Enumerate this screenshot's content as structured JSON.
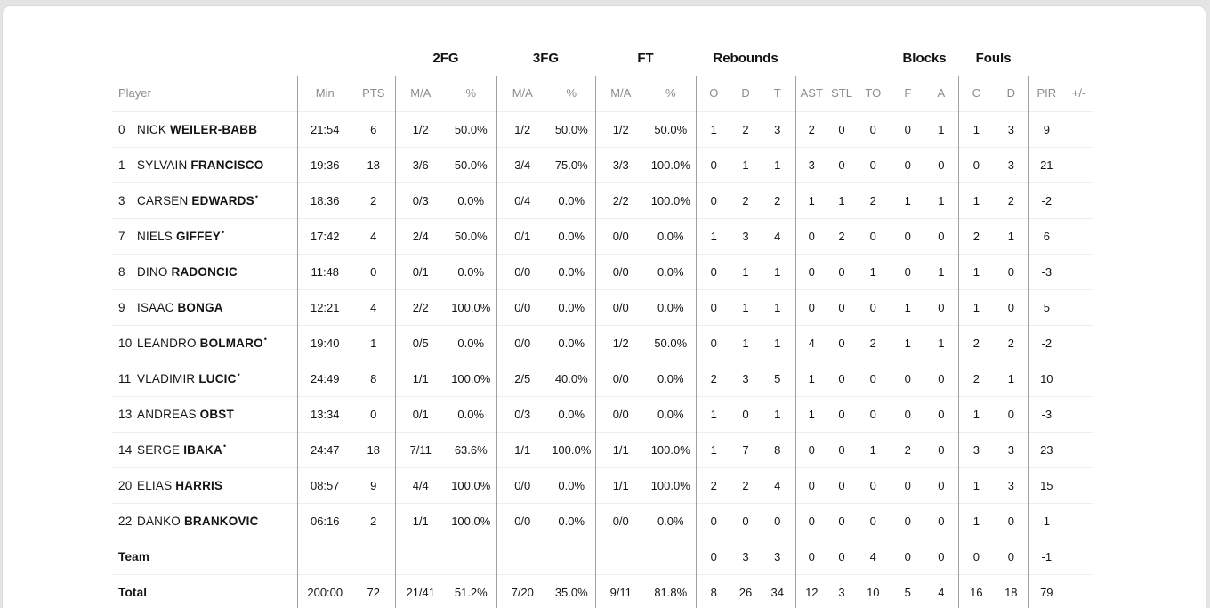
{
  "page": {
    "background": "#e4e4e4",
    "card_background": "#ffffff",
    "card_border": "#dcdcdc"
  },
  "colors": {
    "text_primary": "#141414",
    "text_secondary": "#8c8c8c",
    "divider_vertical": "#a0a0a0",
    "divider_horizontal": "#ededed"
  },
  "table": {
    "starter_mark": "•",
    "group_headers": {
      "fg2": "2FG",
      "fg3": "3FG",
      "ft": "FT",
      "rebounds": "Rebounds",
      "blocks": "Blocks",
      "fouls": "Fouls"
    },
    "column_headers": {
      "player": "Player",
      "min": "Min",
      "pts": "PTS",
      "ma": "M/A",
      "pct": "%",
      "reb_o": "O",
      "reb_d": "D",
      "reb_t": "T",
      "ast": "AST",
      "stl": "STL",
      "to": "TO",
      "blk_f": "F",
      "blk_a": "A",
      "foul_c": "C",
      "foul_d": "D",
      "pir": "PIR",
      "plusminus": "+/-"
    },
    "rows": [
      {
        "number": "0",
        "first": "NICK",
        "last": "WEILER-BABB",
        "starter": false,
        "min": "21:54",
        "pts": "6",
        "fg2_ma": "1/2",
        "fg2_pct": "50.0%",
        "fg3_ma": "1/2",
        "fg3_pct": "50.0%",
        "ft_ma": "1/2",
        "ft_pct": "50.0%",
        "reb_o": "1",
        "reb_d": "2",
        "reb_t": "3",
        "ast": "2",
        "stl": "0",
        "to": "0",
        "blk_f": "0",
        "blk_a": "1",
        "foul_c": "1",
        "foul_d": "3",
        "pir": "9",
        "plusminus": ""
      },
      {
        "number": "1",
        "first": "SYLVAIN",
        "last": "FRANCISCO",
        "starter": false,
        "min": "19:36",
        "pts": "18",
        "fg2_ma": "3/6",
        "fg2_pct": "50.0%",
        "fg3_ma": "3/4",
        "fg3_pct": "75.0%",
        "ft_ma": "3/3",
        "ft_pct": "100.0%",
        "reb_o": "0",
        "reb_d": "1",
        "reb_t": "1",
        "ast": "3",
        "stl": "0",
        "to": "0",
        "blk_f": "0",
        "blk_a": "0",
        "foul_c": "0",
        "foul_d": "3",
        "pir": "21",
        "plusminus": ""
      },
      {
        "number": "3",
        "first": "CARSEN",
        "last": "EDWARDS",
        "starter": true,
        "min": "18:36",
        "pts": "2",
        "fg2_ma": "0/3",
        "fg2_pct": "0.0%",
        "fg3_ma": "0/4",
        "fg3_pct": "0.0%",
        "ft_ma": "2/2",
        "ft_pct": "100.0%",
        "reb_o": "0",
        "reb_d": "2",
        "reb_t": "2",
        "ast": "1",
        "stl": "1",
        "to": "2",
        "blk_f": "1",
        "blk_a": "1",
        "foul_c": "1",
        "foul_d": "2",
        "pir": "-2",
        "plusminus": ""
      },
      {
        "number": "7",
        "first": "NIELS",
        "last": "GIFFEY",
        "starter": true,
        "min": "17:42",
        "pts": "4",
        "fg2_ma": "2/4",
        "fg2_pct": "50.0%",
        "fg3_ma": "0/1",
        "fg3_pct": "0.0%",
        "ft_ma": "0/0",
        "ft_pct": "0.0%",
        "reb_o": "1",
        "reb_d": "3",
        "reb_t": "4",
        "ast": "0",
        "stl": "2",
        "to": "0",
        "blk_f": "0",
        "blk_a": "0",
        "foul_c": "2",
        "foul_d": "1",
        "pir": "6",
        "plusminus": ""
      },
      {
        "number": "8",
        "first": "DINO",
        "last": "RADONCIC",
        "starter": false,
        "min": "11:48",
        "pts": "0",
        "fg2_ma": "0/1",
        "fg2_pct": "0.0%",
        "fg3_ma": "0/0",
        "fg3_pct": "0.0%",
        "ft_ma": "0/0",
        "ft_pct": "0.0%",
        "reb_o": "0",
        "reb_d": "1",
        "reb_t": "1",
        "ast": "0",
        "stl": "0",
        "to": "1",
        "blk_f": "0",
        "blk_a": "1",
        "foul_c": "1",
        "foul_d": "0",
        "pir": "-3",
        "plusminus": ""
      },
      {
        "number": "9",
        "first": "ISAAC",
        "last": "BONGA",
        "starter": false,
        "min": "12:21",
        "pts": "4",
        "fg2_ma": "2/2",
        "fg2_pct": "100.0%",
        "fg3_ma": "0/0",
        "fg3_pct": "0.0%",
        "ft_ma": "0/0",
        "ft_pct": "0.0%",
        "reb_o": "0",
        "reb_d": "1",
        "reb_t": "1",
        "ast": "0",
        "stl": "0",
        "to": "0",
        "blk_f": "1",
        "blk_a": "0",
        "foul_c": "1",
        "foul_d": "0",
        "pir": "5",
        "plusminus": ""
      },
      {
        "number": "10",
        "first": "LEANDRO",
        "last": "BOLMARO",
        "starter": true,
        "min": "19:40",
        "pts": "1",
        "fg2_ma": "0/5",
        "fg2_pct": "0.0%",
        "fg3_ma": "0/0",
        "fg3_pct": "0.0%",
        "ft_ma": "1/2",
        "ft_pct": "50.0%",
        "reb_o": "0",
        "reb_d": "1",
        "reb_t": "1",
        "ast": "4",
        "stl": "0",
        "to": "2",
        "blk_f": "1",
        "blk_a": "1",
        "foul_c": "2",
        "foul_d": "2",
        "pir": "-2",
        "plusminus": ""
      },
      {
        "number": "11",
        "first": "VLADIMIR",
        "last": "LUCIC",
        "starter": true,
        "min": "24:49",
        "pts": "8",
        "fg2_ma": "1/1",
        "fg2_pct": "100.0%",
        "fg3_ma": "2/5",
        "fg3_pct": "40.0%",
        "ft_ma": "0/0",
        "ft_pct": "0.0%",
        "reb_o": "2",
        "reb_d": "3",
        "reb_t": "5",
        "ast": "1",
        "stl": "0",
        "to": "0",
        "blk_f": "0",
        "blk_a": "0",
        "foul_c": "2",
        "foul_d": "1",
        "pir": "10",
        "plusminus": ""
      },
      {
        "number": "13",
        "first": "ANDREAS",
        "last": "OBST",
        "starter": false,
        "min": "13:34",
        "pts": "0",
        "fg2_ma": "0/1",
        "fg2_pct": "0.0%",
        "fg3_ma": "0/3",
        "fg3_pct": "0.0%",
        "ft_ma": "0/0",
        "ft_pct": "0.0%",
        "reb_o": "1",
        "reb_d": "0",
        "reb_t": "1",
        "ast": "1",
        "stl": "0",
        "to": "0",
        "blk_f": "0",
        "blk_a": "0",
        "foul_c": "1",
        "foul_d": "0",
        "pir": "-3",
        "plusminus": ""
      },
      {
        "number": "14",
        "first": "SERGE",
        "last": "IBAKA",
        "starter": true,
        "min": "24:47",
        "pts": "18",
        "fg2_ma": "7/11",
        "fg2_pct": "63.6%",
        "fg3_ma": "1/1",
        "fg3_pct": "100.0%",
        "ft_ma": "1/1",
        "ft_pct": "100.0%",
        "reb_o": "1",
        "reb_d": "7",
        "reb_t": "8",
        "ast": "0",
        "stl": "0",
        "to": "1",
        "blk_f": "2",
        "blk_a": "0",
        "foul_c": "3",
        "foul_d": "3",
        "pir": "23",
        "plusminus": ""
      },
      {
        "number": "20",
        "first": "ELIAS",
        "last": "HARRIS",
        "starter": false,
        "min": "08:57",
        "pts": "9",
        "fg2_ma": "4/4",
        "fg2_pct": "100.0%",
        "fg3_ma": "0/0",
        "fg3_pct": "0.0%",
        "ft_ma": "1/1",
        "ft_pct": "100.0%",
        "reb_o": "2",
        "reb_d": "2",
        "reb_t": "4",
        "ast": "0",
        "stl": "0",
        "to": "0",
        "blk_f": "0",
        "blk_a": "0",
        "foul_c": "1",
        "foul_d": "3",
        "pir": "15",
        "plusminus": ""
      },
      {
        "number": "22",
        "first": "DANKO",
        "last": "BRANKOVIC",
        "starter": false,
        "min": "06:16",
        "pts": "2",
        "fg2_ma": "1/1",
        "fg2_pct": "100.0%",
        "fg3_ma": "0/0",
        "fg3_pct": "0.0%",
        "ft_ma": "0/0",
        "ft_pct": "0.0%",
        "reb_o": "0",
        "reb_d": "0",
        "reb_t": "0",
        "ast": "0",
        "stl": "0",
        "to": "0",
        "blk_f": "0",
        "blk_a": "0",
        "foul_c": "1",
        "foul_d": "0",
        "pir": "1",
        "plusminus": ""
      },
      {
        "label": "Team",
        "min": "",
        "pts": "",
        "fg2_ma": "",
        "fg2_pct": "",
        "fg3_ma": "",
        "fg3_pct": "",
        "ft_ma": "",
        "ft_pct": "",
        "reb_o": "0",
        "reb_d": "3",
        "reb_t": "3",
        "ast": "0",
        "stl": "0",
        "to": "4",
        "blk_f": "0",
        "blk_a": "0",
        "foul_c": "0",
        "foul_d": "0",
        "pir": "-1",
        "plusminus": ""
      },
      {
        "label": "Total",
        "min": "200:00",
        "pts": "72",
        "fg2_ma": "21/41",
        "fg2_pct": "51.2%",
        "fg3_ma": "7/20",
        "fg3_pct": "35.0%",
        "ft_ma": "9/11",
        "ft_pct": "81.8%",
        "reb_o": "8",
        "reb_d": "26",
        "reb_t": "34",
        "ast": "12",
        "stl": "3",
        "to": "10",
        "blk_f": "5",
        "blk_a": "4",
        "foul_c": "16",
        "foul_d": "18",
        "pir": "79",
        "plusminus": ""
      }
    ]
  }
}
